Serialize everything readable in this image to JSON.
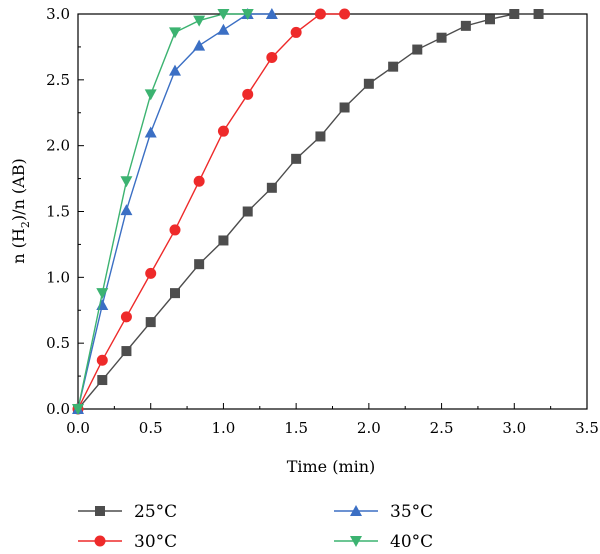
{
  "chart_data": {
    "type": "line",
    "title": "",
    "xlabel": "Time (min)",
    "ylabel": {
      "prefix": "n (H",
      "subscript": "2",
      "suffix": ")/n (AB)"
    },
    "xlim": [
      0,
      3.5
    ],
    "ylim": [
      0,
      3.0
    ],
    "xticks": [
      "0.0",
      "0.5",
      "1.0",
      "1.5",
      "2.0",
      "2.5",
      "3.0",
      "3.5"
    ],
    "yticks": [
      "0.0",
      "0.5",
      "1.0",
      "1.5",
      "2.0",
      "2.5",
      "3.0"
    ],
    "grid": false,
    "legend_position": "bottom",
    "series": [
      {
        "name": "25°C",
        "color": "#4d4d4d",
        "marker": "square",
        "x": [
          0,
          0.167,
          0.333,
          0.5,
          0.667,
          0.833,
          1.0,
          1.167,
          1.333,
          1.5,
          1.667,
          1.833,
          2.0,
          2.167,
          2.333,
          2.5,
          2.667,
          2.833,
          3.0,
          3.167
        ],
        "y": [
          0,
          0.22,
          0.44,
          0.66,
          0.88,
          1.1,
          1.28,
          1.5,
          1.68,
          1.9,
          2.07,
          2.29,
          2.47,
          2.6,
          2.73,
          2.82,
          2.91,
          2.96,
          3.0,
          3.0
        ]
      },
      {
        "name": "30°C",
        "color": "#ee2a2a",
        "marker": "circle",
        "x": [
          0,
          0.167,
          0.333,
          0.5,
          0.667,
          0.833,
          1.0,
          1.167,
          1.333,
          1.5,
          1.667,
          1.833
        ],
        "y": [
          0,
          0.37,
          0.7,
          1.03,
          1.36,
          1.73,
          2.11,
          2.39,
          2.67,
          2.86,
          3.0,
          3.0
        ]
      },
      {
        "name": "35°C",
        "color": "#3b6fc4",
        "marker": "triangle-up",
        "x": [
          0,
          0.167,
          0.333,
          0.5,
          0.667,
          0.833,
          1.0,
          1.167,
          1.333
        ],
        "y": [
          0,
          0.79,
          1.51,
          2.1,
          2.57,
          2.76,
          2.88,
          3.0,
          3.0
        ]
      },
      {
        "name": "40°C",
        "color": "#3cb371",
        "marker": "triangle-down",
        "x": [
          0,
          0.167,
          0.333,
          0.5,
          0.667,
          0.833,
          1.0,
          1.167
        ],
        "y": [
          0,
          0.88,
          1.73,
          2.39,
          2.86,
          2.95,
          3.0,
          3.0
        ]
      }
    ]
  }
}
